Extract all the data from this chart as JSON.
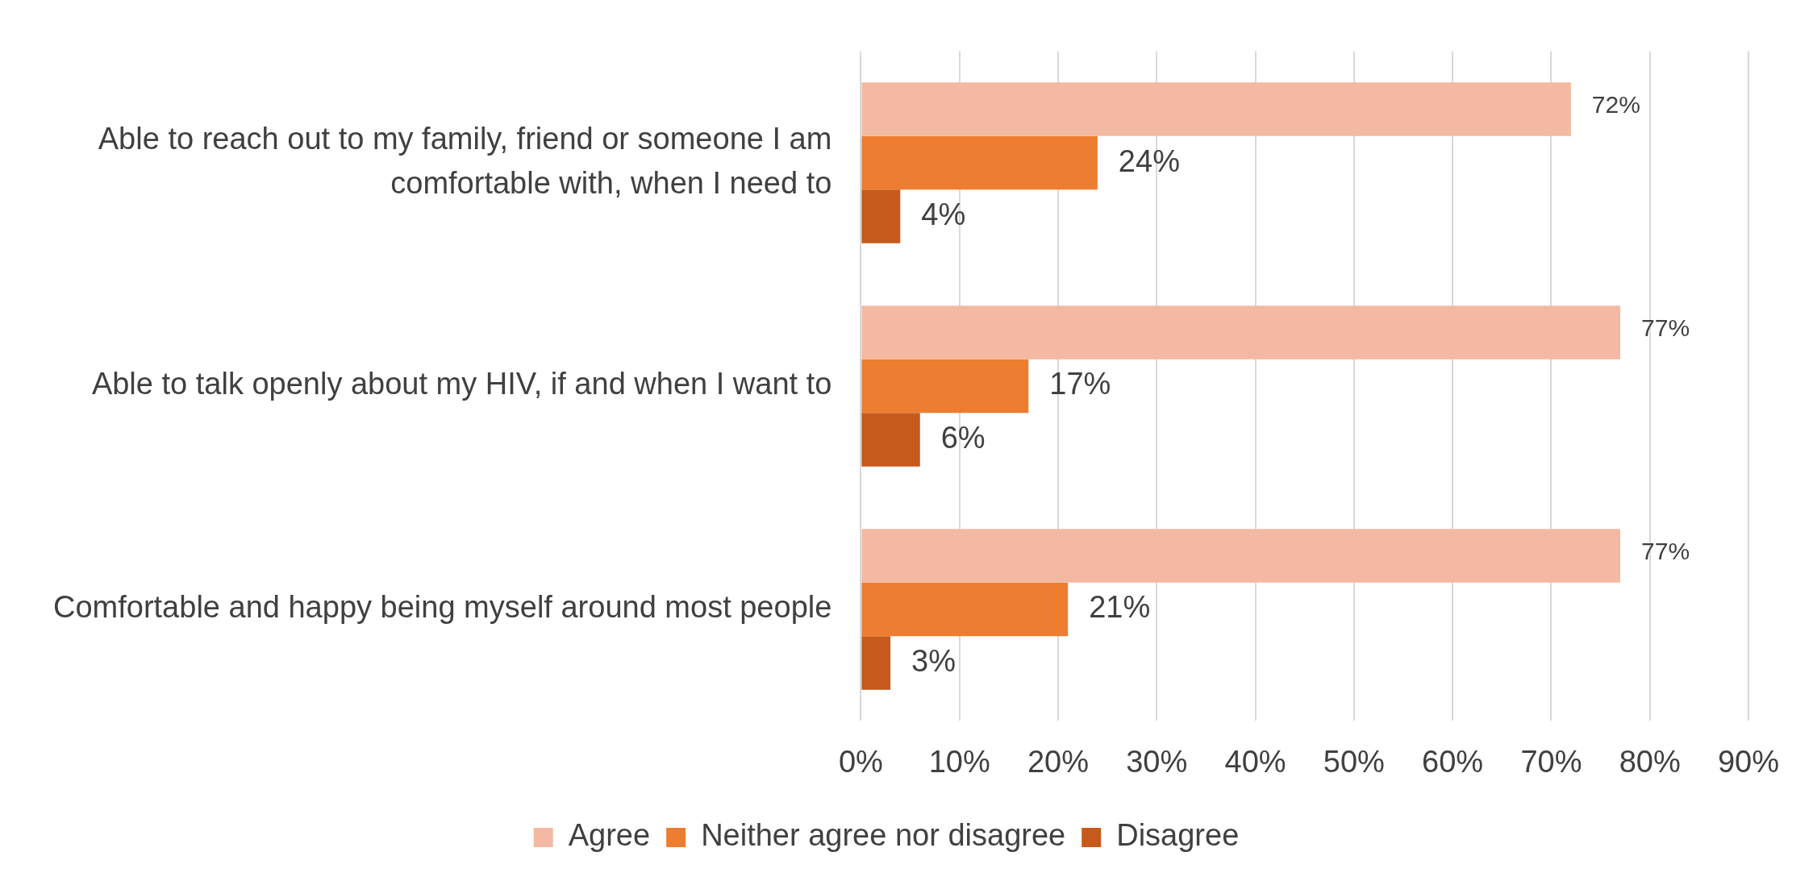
{
  "chart_data": {
    "type": "bar",
    "orientation": "horizontal",
    "categories": [
      "Able to reach out to my family, friend or someone I am comfortable with, when I need to",
      "Able to talk openly about my HIV, if and when I want to",
      "Comfortable and happy being myself around most people"
    ],
    "series": [
      {
        "name": "Agree",
        "color": "#f4b9a2",
        "values": [
          72,
          77,
          77
        ],
        "value_labels": [
          "72%",
          "77%",
          "77%"
        ]
      },
      {
        "name": "Neither agree nor disagree",
        "color": "#ed7d31",
        "values": [
          24,
          17,
          21
        ],
        "value_labels": [
          "24%",
          "17%",
          "21%"
        ]
      },
      {
        "name": "Disagree",
        "color": "#c55a1c",
        "values": [
          4,
          6,
          3
        ],
        "value_labels": [
          "4%",
          "6%",
          "3%"
        ]
      }
    ],
    "xlim": [
      0,
      90
    ],
    "xticks": [
      {
        "value": 0,
        "label": "0%"
      },
      {
        "value": 10,
        "label": "10%"
      },
      {
        "value": 20,
        "label": "20%"
      },
      {
        "value": 30,
        "label": "30%"
      },
      {
        "value": 40,
        "label": "40%"
      },
      {
        "value": 50,
        "label": "50%"
      },
      {
        "value": 60,
        "label": "60%"
      },
      {
        "value": 70,
        "label": "70%"
      },
      {
        "value": 80,
        "label": "80%"
      },
      {
        "value": 90,
        "label": "90%"
      }
    ],
    "grid": "x",
    "legend": "bottom"
  }
}
